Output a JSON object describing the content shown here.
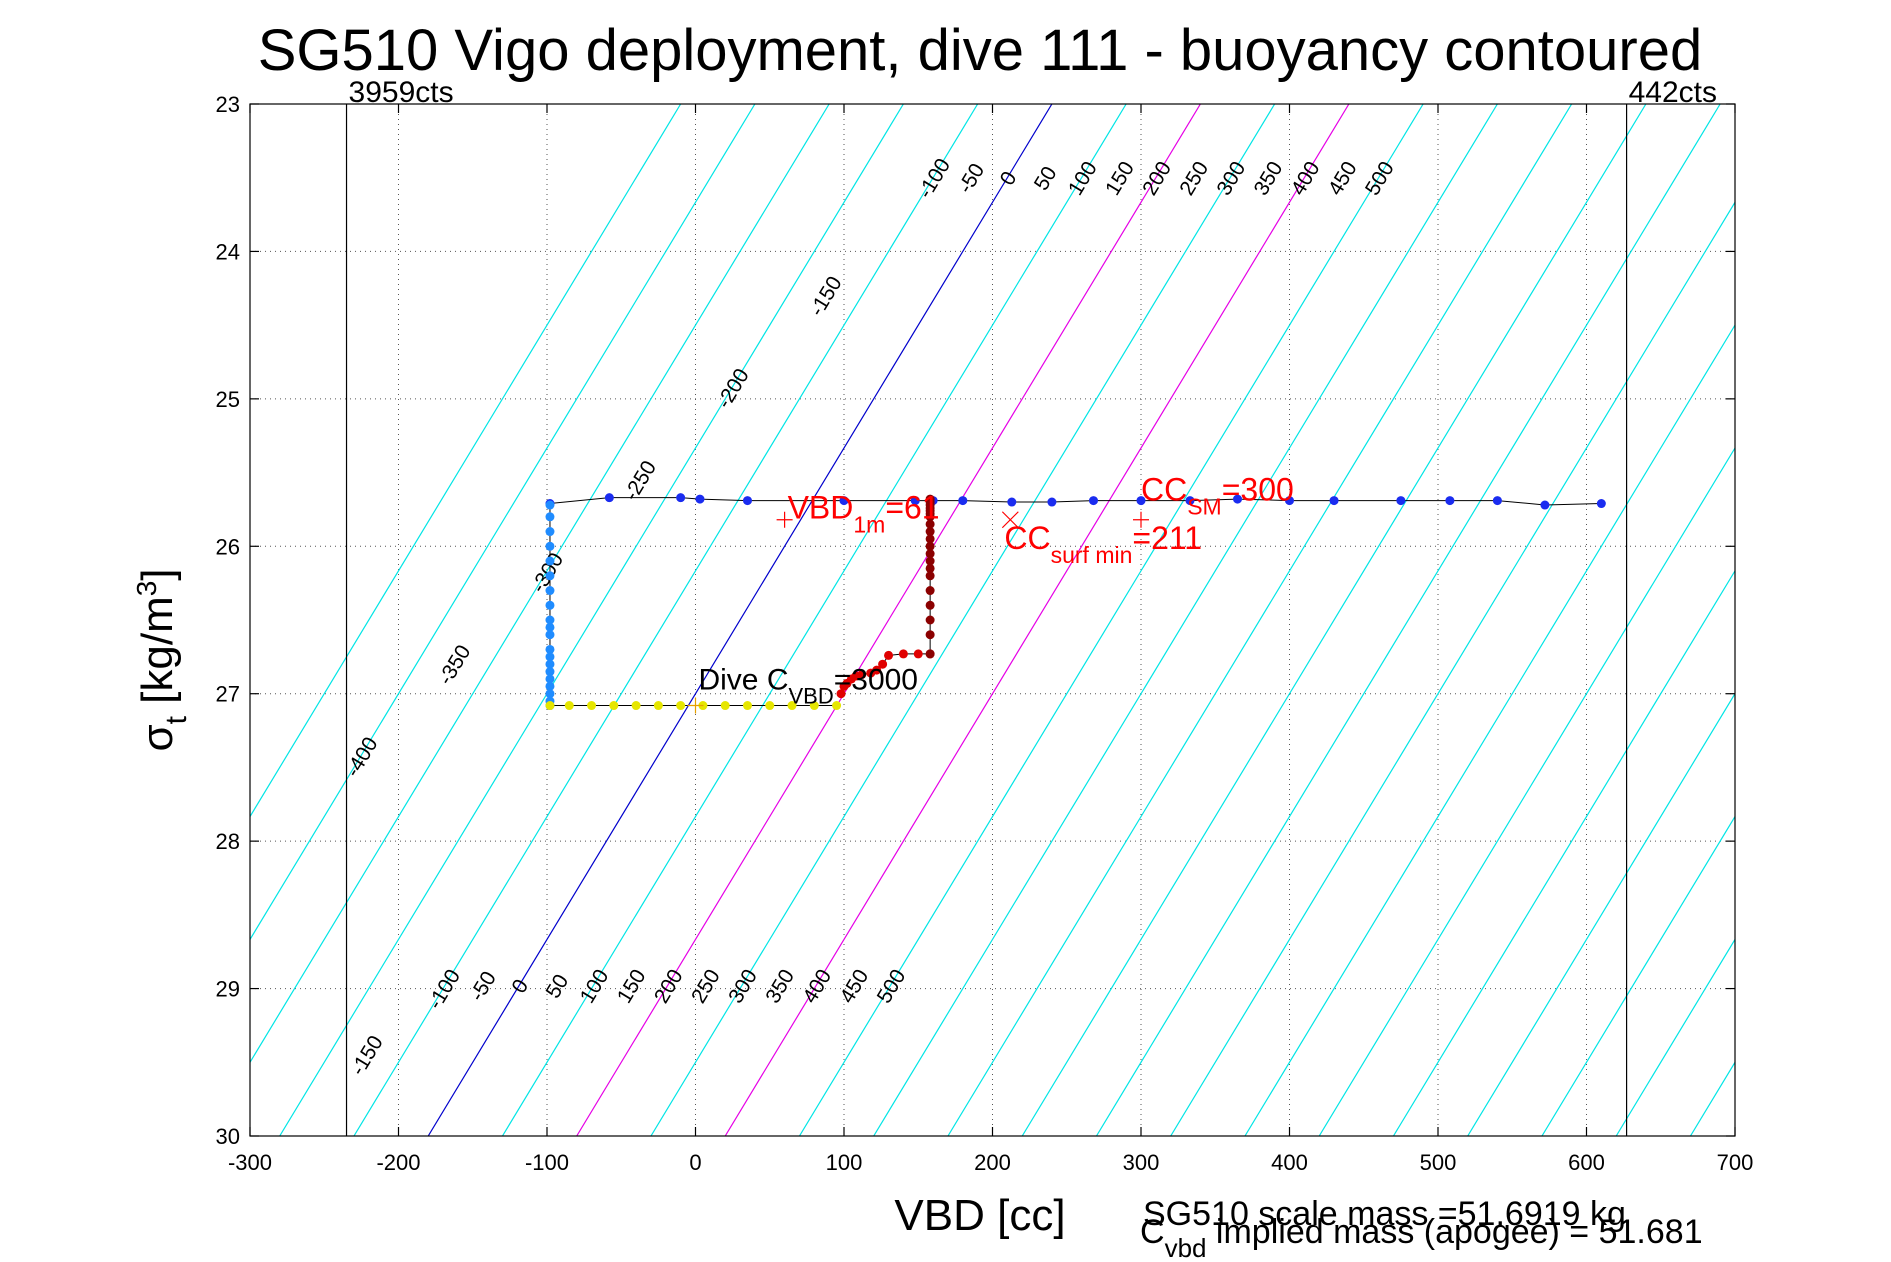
{
  "chart_data": {
    "type": "scatter",
    "title": "SG510 Vigo deployment, dive 111 - buoyancy contoured",
    "xlabel": "VBD [cc]",
    "ylabel": {
      "main": "σ",
      "sub": "t",
      "unit_pre": " [kg/m",
      "unit_sup": "3",
      "unit_post": "]"
    },
    "xlim": [
      -300,
      700
    ],
    "ylim": [
      23,
      30
    ],
    "y_reversed": true,
    "xticks": [
      -300,
      -200,
      -100,
      0,
      100,
      200,
      300,
      400,
      500,
      600,
      700
    ],
    "yticks": [
      23,
      24,
      25,
      26,
      27,
      28,
      29,
      30
    ],
    "grid": true,
    "vlines": [
      {
        "x": -235,
        "label": "3959cts"
      },
      {
        "x": 627,
        "label": "442cts"
      }
    ],
    "buoyancy_contours": {
      "color": "#00e5e5",
      "slope_vbd_per_sigma": -60,
      "x_at_sigma27_start": -250,
      "x_at_sigma27_step": 50,
      "x_at_sigma27_count": 24,
      "top_labels": [
        "-400",
        "-350",
        "-300",
        "-250",
        "-200",
        "-150",
        "-100",
        "-50",
        "0",
        "50",
        "100",
        "150",
        "200",
        "250",
        "300",
        "350",
        "400",
        "450",
        "500"
      ],
      "bottom_labels": [
        "-150",
        "-100",
        "-50",
        "0",
        "50",
        "100",
        "150",
        "200",
        "250",
        "300",
        "350",
        "400",
        "450",
        "500"
      ],
      "zero_line_color": "#0000cc",
      "highlight_color": "#e600e6",
      "highlight_x_at_sigma27": [
        100,
        200
      ]
    },
    "series": [
      {
        "name": "surface",
        "color": "#1a2cf0",
        "x": [
          -98,
          -58,
          -10,
          3,
          35,
          100,
          148,
          160,
          180,
          213,
          240,
          268,
          300,
          333,
          365,
          400,
          430,
          475,
          508,
          540,
          572,
          610
        ],
        "y": [
          25.71,
          25.67,
          25.67,
          25.68,
          25.69,
          25.69,
          25.69,
          25.69,
          25.69,
          25.7,
          25.7,
          25.69,
          25.69,
          25.69,
          25.68,
          25.69,
          25.69,
          25.69,
          25.69,
          25.69,
          25.72,
          25.71
        ]
      },
      {
        "name": "dive",
        "color": "#1f8cff",
        "x": [
          -98,
          -98,
          -98,
          -98,
          -98,
          -98,
          -98,
          -98,
          -98,
          -98,
          -98,
          -98,
          -98,
          -98,
          -98,
          -98,
          -98,
          -98,
          -98,
          -98
        ],
        "y": [
          25.72,
          25.8,
          25.9,
          26.0,
          26.1,
          26.2,
          26.3,
          26.4,
          26.5,
          26.55,
          26.6,
          26.7,
          26.75,
          26.8,
          26.85,
          26.9,
          26.95,
          27.0,
          27.05,
          27.08
        ]
      },
      {
        "name": "apogee",
        "color": "#e6e600",
        "x": [
          -98,
          -85,
          -70,
          -55,
          -40,
          -25,
          -10,
          5,
          20,
          35,
          50,
          65,
          80,
          95
        ],
        "y": [
          27.08,
          27.08,
          27.08,
          27.08,
          27.08,
          27.08,
          27.08,
          27.08,
          27.08,
          27.08,
          27.08,
          27.08,
          27.08,
          27.08
        ]
      },
      {
        "name": "climb",
        "color": "#e00000",
        "x": [
          98,
          100,
          102,
          105,
          108,
          112,
          118,
          122,
          126,
          130,
          140,
          150,
          158
        ],
        "y": [
          27.0,
          26.95,
          26.93,
          26.9,
          26.88,
          26.87,
          26.86,
          26.84,
          26.8,
          26.74,
          26.73,
          26.73,
          26.73
        ]
      },
      {
        "name": "climb-upper",
        "color": "#8b0000",
        "x": [
          158,
          158,
          158,
          158,
          158,
          158,
          158,
          158,
          158,
          158,
          158,
          158,
          158,
          158,
          158,
          158,
          158,
          158,
          158,
          158
        ],
        "y": [
          26.73,
          26.6,
          26.5,
          26.4,
          26.3,
          26.2,
          26.15,
          26.1,
          26.05,
          26.0,
          25.95,
          25.9,
          25.85,
          25.8,
          25.78,
          25.76,
          25.74,
          25.72,
          25.7,
          25.68
        ]
      }
    ],
    "markers": [
      {
        "x": 0,
        "y": 27.08,
        "color": "#e6a000",
        "symbol": "+"
      },
      {
        "x": 60,
        "y": 25.82,
        "color": "#ff0000",
        "symbol": "+"
      },
      {
        "x": 300,
        "y": 25.82,
        "color": "#ff0000",
        "symbol": "+"
      },
      {
        "x": 212,
        "y": 25.82,
        "color": "#ff0000",
        "symbol": "x"
      }
    ],
    "annotations": [
      {
        "x": 2,
        "y": 26.97,
        "color": "#000000",
        "fs": 30,
        "main": "Dive C",
        "sub": "VBD",
        "post": "=3000"
      },
      {
        "x": 62,
        "y": 25.81,
        "color": "#ff0000",
        "fs": 32,
        "main": "VBD",
        "sub": "1m",
        "post": "=61"
      },
      {
        "x": 300,
        "y": 25.69,
        "color": "#ff0000",
        "fs": 32,
        "main": "CC",
        "sub": "SM",
        "post": "=300"
      },
      {
        "x": 208,
        "y": 26.02,
        "color": "#ff0000",
        "fs": 32,
        "main": "CC",
        "sub": "surf min",
        "post": "=211"
      }
    ],
    "footer": {
      "mass": "SG510 scale mass =51.6919 kg",
      "implied_main": "C",
      "implied_sub": "vbd",
      "implied_post": " implied mass (apogee) = 51.681"
    }
  }
}
